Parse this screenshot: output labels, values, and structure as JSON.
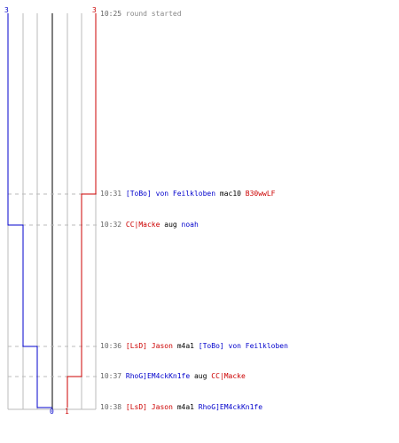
{
  "scores": {
    "blue_start": "3",
    "red_start": "3",
    "blue_end": "0",
    "red_end": "1"
  },
  "colors": {
    "blue": "#0000cc",
    "red": "#cc0000",
    "grid": "#bbbbbb",
    "center": "#555555",
    "text_gray": "#888888"
  },
  "events": [
    {
      "time": "10:25",
      "y_score_blue": 3,
      "y_score_red": 3,
      "parts": [
        {
          "text": "round started",
          "color": "gray"
        }
      ]
    },
    {
      "time": "10:31",
      "parts": [
        {
          "text": "[ToBo] von Feilkloben",
          "color": "blue"
        },
        {
          "text": " mac10 ",
          "color": "dark"
        },
        {
          "text": "B30wwLF",
          "color": "red"
        }
      ]
    },
    {
      "time": "10:32",
      "parts": [
        {
          "text": "CC|Macke",
          "color": "red"
        },
        {
          "text": " aug ",
          "color": "dark"
        },
        {
          "text": "noah",
          "color": "blue"
        }
      ]
    },
    {
      "time": "10:36",
      "parts": [
        {
          "text": "[LsD] Jason",
          "color": "red"
        },
        {
          "text": " m4a1 ",
          "color": "dark"
        },
        {
          "text": "[ToBo] von Feilkloben",
          "color": "blue"
        }
      ]
    },
    {
      "time": "10:37",
      "parts": [
        {
          "text": "RhoG]EM4ckKn1fe",
          "color": "blue"
        },
        {
          "text": " aug ",
          "color": "dark"
        },
        {
          "text": "CC|Macke",
          "color": "red"
        }
      ]
    },
    {
      "time": "10:38",
      "parts": [
        {
          "text": "[LsD] Jason",
          "color": "red"
        },
        {
          "text": " m4a1 ",
          "color": "dark"
        },
        {
          "text": "RhoG]EM4ckKn1fe",
          "color": "blue"
        }
      ]
    }
  ]
}
